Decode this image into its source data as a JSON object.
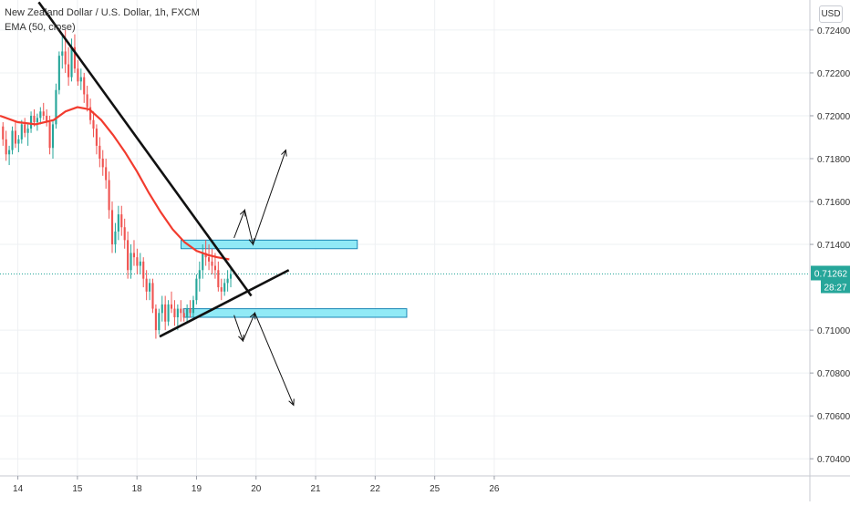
{
  "symbol_title": "New Zealand Dollar / U.S. Dollar, 1h, FXCM",
  "indicator_label": "EMA (50, close)",
  "currency_button": "USD",
  "price_badge": {
    "price": "0.71262",
    "countdown": "28:27",
    "color": "#26a69a"
  },
  "colors": {
    "up": "#26a69a",
    "down": "#ef5350",
    "ema": "#f23b2e",
    "zone_fill": "#7ee6f5",
    "zone_stroke": "#1b87b5",
    "grid": "#eef0f3",
    "line": "#111111"
  },
  "chart_data": {
    "type": "candlestick",
    "x_axis": {
      "min": 13.7,
      "max": 27.3,
      "ticks": [
        {
          "v": 14,
          "label": "14"
        },
        {
          "v": 15,
          "label": "15"
        },
        {
          "v": 16,
          "label": "18"
        },
        {
          "v": 17,
          "label": "19"
        },
        {
          "v": 18,
          "label": "20"
        },
        {
          "v": 19,
          "label": "21"
        },
        {
          "v": 20,
          "label": "22"
        },
        {
          "v": 21,
          "label": "25"
        },
        {
          "v": 22,
          "label": "26"
        }
      ]
    },
    "y_axis": {
      "min": 0.7032,
      "max": 0.7254,
      "ticks": [
        {
          "v": 0.724,
          "label": "0.72400"
        },
        {
          "v": 0.722,
          "label": "0.72200"
        },
        {
          "v": 0.72,
          "label": "0.72000"
        },
        {
          "v": 0.718,
          "label": "0.71800"
        },
        {
          "v": 0.716,
          "label": "0.71600"
        },
        {
          "v": 0.714,
          "label": "0.71400"
        },
        {
          "v": 0.71,
          "label": "0.71000"
        },
        {
          "v": 0.708,
          "label": "0.70800"
        },
        {
          "v": 0.706,
          "label": "0.70600"
        },
        {
          "v": 0.704,
          "label": "0.70400"
        }
      ]
    },
    "candle_start_x": 13.75,
    "candle_step": 0.0524,
    "candles": [
      [
        0.7195,
        0.7197,
        0.7186,
        0.7189
      ],
      [
        0.7189,
        0.7193,
        0.7179,
        0.7182
      ],
      [
        0.7182,
        0.7186,
        0.7177,
        0.7184
      ],
      [
        0.7184,
        0.7195,
        0.7182,
        0.7193
      ],
      [
        0.7193,
        0.7197,
        0.7185,
        0.7187
      ],
      [
        0.7187,
        0.7191,
        0.7183,
        0.7189
      ],
      [
        0.7189,
        0.7198,
        0.7187,
        0.7196
      ],
      [
        0.7196,
        0.7199,
        0.719,
        0.7192
      ],
      [
        0.7192,
        0.7196,
        0.7186,
        0.7194
      ],
      [
        0.7194,
        0.7202,
        0.7192,
        0.72
      ],
      [
        0.72,
        0.7203,
        0.7195,
        0.7197
      ],
      [
        0.7197,
        0.7201,
        0.7193,
        0.7199
      ],
      [
        0.7199,
        0.7204,
        0.7196,
        0.7202
      ],
      [
        0.7202,
        0.7206,
        0.7198,
        0.72
      ],
      [
        0.72,
        0.7203,
        0.7195,
        0.7197
      ],
      [
        0.7197,
        0.72,
        0.7182,
        0.7185
      ],
      [
        0.7185,
        0.7198,
        0.718,
        0.7196
      ],
      [
        0.7196,
        0.7215,
        0.7194,
        0.7212
      ],
      [
        0.7212,
        0.723,
        0.721,
        0.7228
      ],
      [
        0.7228,
        0.7238,
        0.7222,
        0.723
      ],
      [
        0.723,
        0.724,
        0.722,
        0.7224
      ],
      [
        0.7224,
        0.7232,
        0.7214,
        0.7218
      ],
      [
        0.7218,
        0.7236,
        0.7216,
        0.7232
      ],
      [
        0.7232,
        0.7238,
        0.722,
        0.7222
      ],
      [
        0.7222,
        0.7226,
        0.7214,
        0.7216
      ],
      [
        0.7216,
        0.7222,
        0.7212,
        0.7218
      ],
      [
        0.7218,
        0.722,
        0.7206,
        0.721
      ],
      [
        0.721,
        0.7214,
        0.7202,
        0.7204
      ],
      [
        0.7204,
        0.7208,
        0.7196,
        0.7198
      ],
      [
        0.7198,
        0.7202,
        0.719,
        0.7194
      ],
      [
        0.7194,
        0.7196,
        0.7182,
        0.7186
      ],
      [
        0.7186,
        0.719,
        0.7176,
        0.718
      ],
      [
        0.718,
        0.7184,
        0.7172,
        0.7176
      ],
      [
        0.7176,
        0.718,
        0.7166,
        0.717
      ],
      [
        0.717,
        0.7174,
        0.7152,
        0.7156
      ],
      [
        0.7156,
        0.716,
        0.7136,
        0.714
      ],
      [
        0.714,
        0.715,
        0.7136,
        0.7146
      ],
      [
        0.7146,
        0.7158,
        0.7142,
        0.7154
      ],
      [
        0.7154,
        0.7158,
        0.7144,
        0.7148
      ],
      [
        0.7148,
        0.7152,
        0.7138,
        0.7142
      ],
      [
        0.7142,
        0.7146,
        0.7124,
        0.7128
      ],
      [
        0.7128,
        0.714,
        0.7124,
        0.7136
      ],
      [
        0.7136,
        0.7142,
        0.713,
        0.7134
      ],
      [
        0.7134,
        0.7138,
        0.7126,
        0.713
      ],
      [
        0.713,
        0.7136,
        0.7126,
        0.7132
      ],
      [
        0.7132,
        0.7134,
        0.712,
        0.7124
      ],
      [
        0.7124,
        0.7128,
        0.7114,
        0.7118
      ],
      [
        0.7118,
        0.7124,
        0.7114,
        0.7122
      ],
      [
        0.7122,
        0.7124,
        0.7108,
        0.711
      ],
      [
        0.711,
        0.7112,
        0.7096,
        0.71
      ],
      [
        0.71,
        0.711,
        0.7098,
        0.7108
      ],
      [
        0.7108,
        0.7116,
        0.7104,
        0.7112
      ],
      [
        0.7112,
        0.7116,
        0.71,
        0.7104
      ],
      [
        0.7104,
        0.7114,
        0.7102,
        0.7112
      ],
      [
        0.7112,
        0.7118,
        0.7108,
        0.711
      ],
      [
        0.711,
        0.7114,
        0.7102,
        0.7106
      ],
      [
        0.7106,
        0.7112,
        0.71,
        0.711
      ],
      [
        0.711,
        0.7114,
        0.7104,
        0.7108
      ],
      [
        0.7108,
        0.711,
        0.7104,
        0.7106
      ],
      [
        0.7106,
        0.7112,
        0.7104,
        0.711
      ],
      [
        0.711,
        0.7114,
        0.7106,
        0.7108
      ],
      [
        0.7108,
        0.7116,
        0.7106,
        0.7114
      ],
      [
        0.7114,
        0.7126,
        0.7112,
        0.7124
      ],
      [
        0.7124,
        0.7132,
        0.7118,
        0.7128
      ],
      [
        0.7128,
        0.714,
        0.7124,
        0.7136
      ],
      [
        0.7136,
        0.7142,
        0.713,
        0.7134
      ],
      [
        0.7134,
        0.714,
        0.7128,
        0.7132
      ],
      [
        0.7132,
        0.7138,
        0.7126,
        0.713
      ],
      [
        0.713,
        0.7136,
        0.7124,
        0.7128
      ],
      [
        0.7128,
        0.7132,
        0.7118,
        0.712
      ],
      [
        0.712,
        0.7124,
        0.7114,
        0.7118
      ],
      [
        0.7118,
        0.7124,
        0.7116,
        0.7122
      ],
      [
        0.7122,
        0.7128,
        0.7118,
        0.7124
      ],
      [
        0.7124,
        0.713,
        0.712,
        0.7126
      ]
    ],
    "ema": [
      [
        13.7,
        0.72
      ],
      [
        14.0,
        0.7197
      ],
      [
        14.3,
        0.7196
      ],
      [
        14.6,
        0.7198
      ],
      [
        14.8,
        0.7202
      ],
      [
        15.0,
        0.7204
      ],
      [
        15.2,
        0.7203
      ],
      [
        15.4,
        0.7198
      ],
      [
        15.6,
        0.7191
      ],
      [
        15.8,
        0.7183
      ],
      [
        16.0,
        0.7174
      ],
      [
        16.2,
        0.7164
      ],
      [
        16.4,
        0.7155
      ],
      [
        16.6,
        0.7147
      ],
      [
        16.8,
        0.7141
      ],
      [
        17.0,
        0.7137
      ],
      [
        17.2,
        0.7135
      ],
      [
        17.35,
        0.7134
      ],
      [
        17.55,
        0.7133
      ]
    ],
    "trendlines": [
      [
        [
          14.35,
          0.7253
        ],
        [
          17.92,
          0.7116
        ]
      ],
      [
        [
          16.38,
          0.7097
        ],
        [
          18.55,
          0.7128
        ]
      ]
    ],
    "zones": [
      {
        "x0": 16.74,
        "x1": 19.7,
        "y0": 0.7138,
        "y1": 0.7142
      },
      {
        "x0": 16.78,
        "x1": 20.53,
        "y0": 0.7106,
        "y1": 0.711
      }
    ],
    "arrow_paths": [
      [
        [
          17.63,
          0.7143
        ],
        [
          17.81,
          0.7156
        ],
        [
          17.95,
          0.714
        ],
        [
          18.5,
          0.7184
        ]
      ],
      [
        [
          17.63,
          0.7107
        ],
        [
          17.78,
          0.7095
        ],
        [
          17.98,
          0.7108
        ],
        [
          18.63,
          0.7065
        ]
      ]
    ],
    "current_price": 0.71262
  }
}
